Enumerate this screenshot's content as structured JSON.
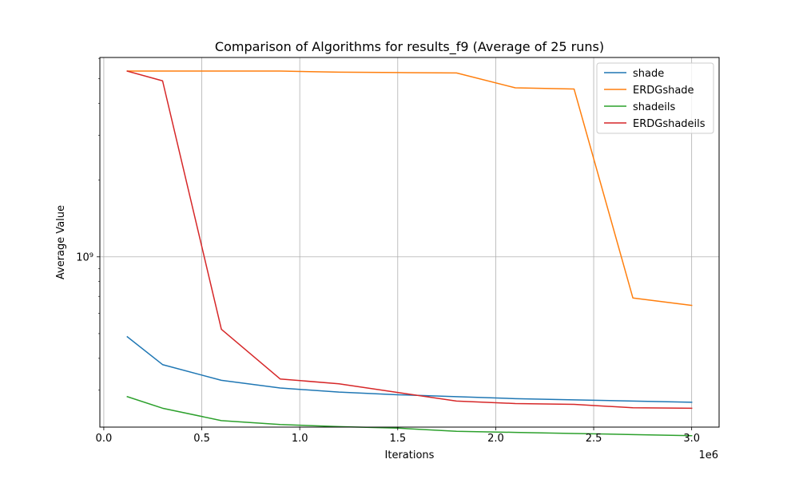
{
  "chart_data": {
    "type": "line",
    "title": "Comparison of Algorithms for results_f9 (Average of 25 runs)",
    "xlabel": "Iterations",
    "ylabel": "Average Value",
    "x_offset_label": "1e6",
    "x_scale": "linear",
    "y_scale": "log",
    "grid": true,
    "legend_position": "top-right",
    "xlim": [
      -0.02,
      3.14
    ],
    "ylim": [
      215000000,
      6050000000
    ],
    "x_ticks": [
      0.0,
      0.5,
      1.0,
      1.5,
      2.0,
      2.5,
      3.0
    ],
    "x_tick_labels": [
      "0.0",
      "0.5",
      "1.0",
      "1.5",
      "2.0",
      "2.5",
      "3.0"
    ],
    "y_ticks": [
      1000000000
    ],
    "y_tick_labels": [
      "10⁹"
    ],
    "x": [
      0.12,
      0.3,
      0.6,
      0.9,
      1.2,
      1.5,
      1.8,
      2.1,
      2.4,
      2.7,
      3.0
    ],
    "series": [
      {
        "name": "shade",
        "color": "#1f77b4",
        "values": [
          486000000,
          378000000,
          328000000,
          306000000,
          295000000,
          288000000,
          283000000,
          278000000,
          275000000,
          272000000,
          269000000
        ]
      },
      {
        "name": "ERDGshade",
        "color": "#ff7f0e",
        "values": [
          5350000000,
          5350000000,
          5350000000,
          5350000000,
          5300000000,
          5280000000,
          5260000000,
          4600000000,
          4550000000,
          690000000,
          645000000
        ]
      },
      {
        "name": "shadeils",
        "color": "#2ca02c",
        "values": [
          283000000,
          255000000,
          228000000,
          220000000,
          216000000,
          213000000,
          207000000,
          205000000,
          203000000,
          201000000,
          199000000
        ]
      },
      {
        "name": "ERDGshadeils",
        "color": "#d62728",
        "values": [
          5350000000,
          4900000000,
          520000000,
          332000000,
          318000000,
          294000000,
          272000000,
          266000000,
          264000000,
          256000000,
          255000000
        ]
      }
    ]
  }
}
